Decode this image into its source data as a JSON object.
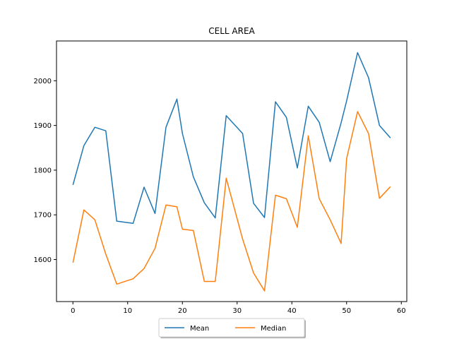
{
  "chart_data": {
    "type": "line",
    "title": "CELL AREA",
    "xlabel": "",
    "ylabel": "",
    "xlim": [
      -3,
      61
    ],
    "ylim": [
      1506,
      2089
    ],
    "xticks": [
      0,
      10,
      20,
      30,
      40,
      50,
      60
    ],
    "yticks": [
      1600,
      1700,
      1800,
      1900,
      2000
    ],
    "grid": false,
    "legend_position": "bottom-center",
    "x": [
      0,
      2,
      4,
      6,
      8,
      11,
      13,
      15,
      17,
      19,
      20,
      22,
      24,
      26,
      28,
      31,
      33,
      35,
      37,
      39,
      41,
      43,
      45,
      47,
      49,
      50,
      52,
      54,
      56,
      58
    ],
    "series": [
      {
        "name": "Mean",
        "color": "#1f77b4",
        "values": [
          1767,
          1855,
          1896,
          1888,
          1686,
          1681,
          1762,
          1703,
          1896,
          1959,
          1882,
          1785,
          1727,
          1693,
          1922,
          1882,
          1726,
          1694,
          1953,
          1918,
          1805,
          1943,
          1907,
          1819,
          1906,
          1955,
          2063,
          2007,
          1900,
          1872
        ]
      },
      {
        "name": "Median",
        "color": "#ff7f0e",
        "values": [
          1593,
          1711,
          1689,
          1612,
          1545,
          1557,
          1580,
          1625,
          1722,
          1718,
          1668,
          1665,
          1551,
          1551,
          1782,
          1646,
          1570,
          1530,
          1744,
          1736,
          1672,
          1877,
          1736,
          1689,
          1636,
          1826,
          1931,
          1882,
          1737,
          1763
        ]
      }
    ]
  }
}
